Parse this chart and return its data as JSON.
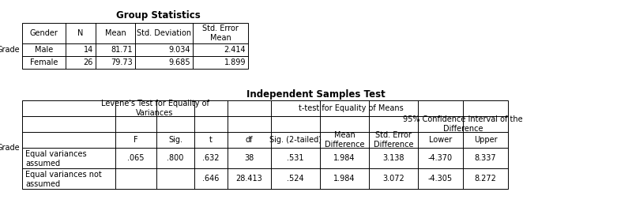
{
  "group_stats_title": "Group Statistics",
  "group_stats_headers": [
    "Gender",
    "N",
    "Mean",
    "Std. Deviation",
    "Std. Error\nMean"
  ],
  "group_stats_row_label": "Grade",
  "group_stats_rows": [
    [
      "Male",
      "14",
      "81.71",
      "9.034",
      "2.414"
    ],
    [
      "Female",
      "26",
      "79.73",
      "9.685",
      "1.899"
    ]
  ],
  "ind_test_title": "Independent Samples Test",
  "levene_header": "Levene's Test for Equality of\nVariances",
  "ttest_header": "t-test for Equality of Means",
  "ci_header": "95% Confidence Interval of the\nDifference",
  "ind_row_label": "Grade",
  "ind_rows": [
    [
      "Equal variances\nassumed",
      ".065",
      ".800",
      ".632",
      "38",
      ".531",
      "1.984",
      "3.138",
      "-4.370",
      "8.337"
    ],
    [
      "Equal variances not\nassumed",
      "",
      "",
      ".646",
      "28.413",
      ".524",
      "1.984",
      "3.072",
      "-4.305",
      "8.272"
    ]
  ],
  "bg_color": "#ffffff",
  "text_color": "#000000",
  "line_color": "#000000",
  "font_size": 7.0,
  "title_font_size": 8.5
}
